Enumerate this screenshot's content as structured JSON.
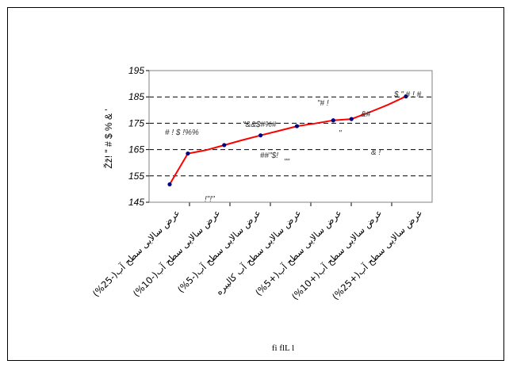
{
  "chart_data": {
    "type": "line",
    "ylabel": "Žž! \" # $ % & '",
    "xlabel": "fi flL l",
    "ylim": [
      145,
      195
    ],
    "yticks": [
      145,
      155,
      165,
      175,
      185,
      195
    ],
    "grid": true,
    "line_color": "#ff0000",
    "marker_color": "#000080",
    "categories": [
      "عرض سالایی سطح آب(-25%)",
      "عرض سالایی سطح آب(-10%)",
      "عرض سالایی سطح آب(-5%)",
      "عرض سالایی سطح آب کالیبره",
      "عرض سالایی سطح آب(+5%)",
      "عرض سالایی سطح آب(+10%)",
      "عرض سالایی سطح آب(+25%)"
    ],
    "x": [
      0,
      1,
      2,
      3,
      4,
      5,
      6,
      7,
      8,
      9,
      10,
      11,
      12,
      13
    ],
    "values": [
      151.8,
      163.5,
      164.8,
      166.7,
      168.6,
      170.4,
      172.1,
      173.9,
      174.9,
      176.1,
      176.6,
      179.2,
      182,
      185.2
    ],
    "marker_indices": [
      0,
      1,
      3,
      5,
      7,
      9,
      10,
      13
    ],
    "annotations": [
      {
        "text": "# ! $ !%%"
      },
      {
        "text": "!\"!\""
      },
      {
        "text": "\"&&$#%#"
      },
      {
        "text": "##\"$!"
      },
      {
        "text": "\"\""
      },
      {
        "text": "\"# !"
      },
      {
        "text": "\""
      },
      {
        "text": "&#"
      },
      {
        "text": "& !"
      },
      {
        "text": "$ \" # ! #"
      }
    ]
  }
}
